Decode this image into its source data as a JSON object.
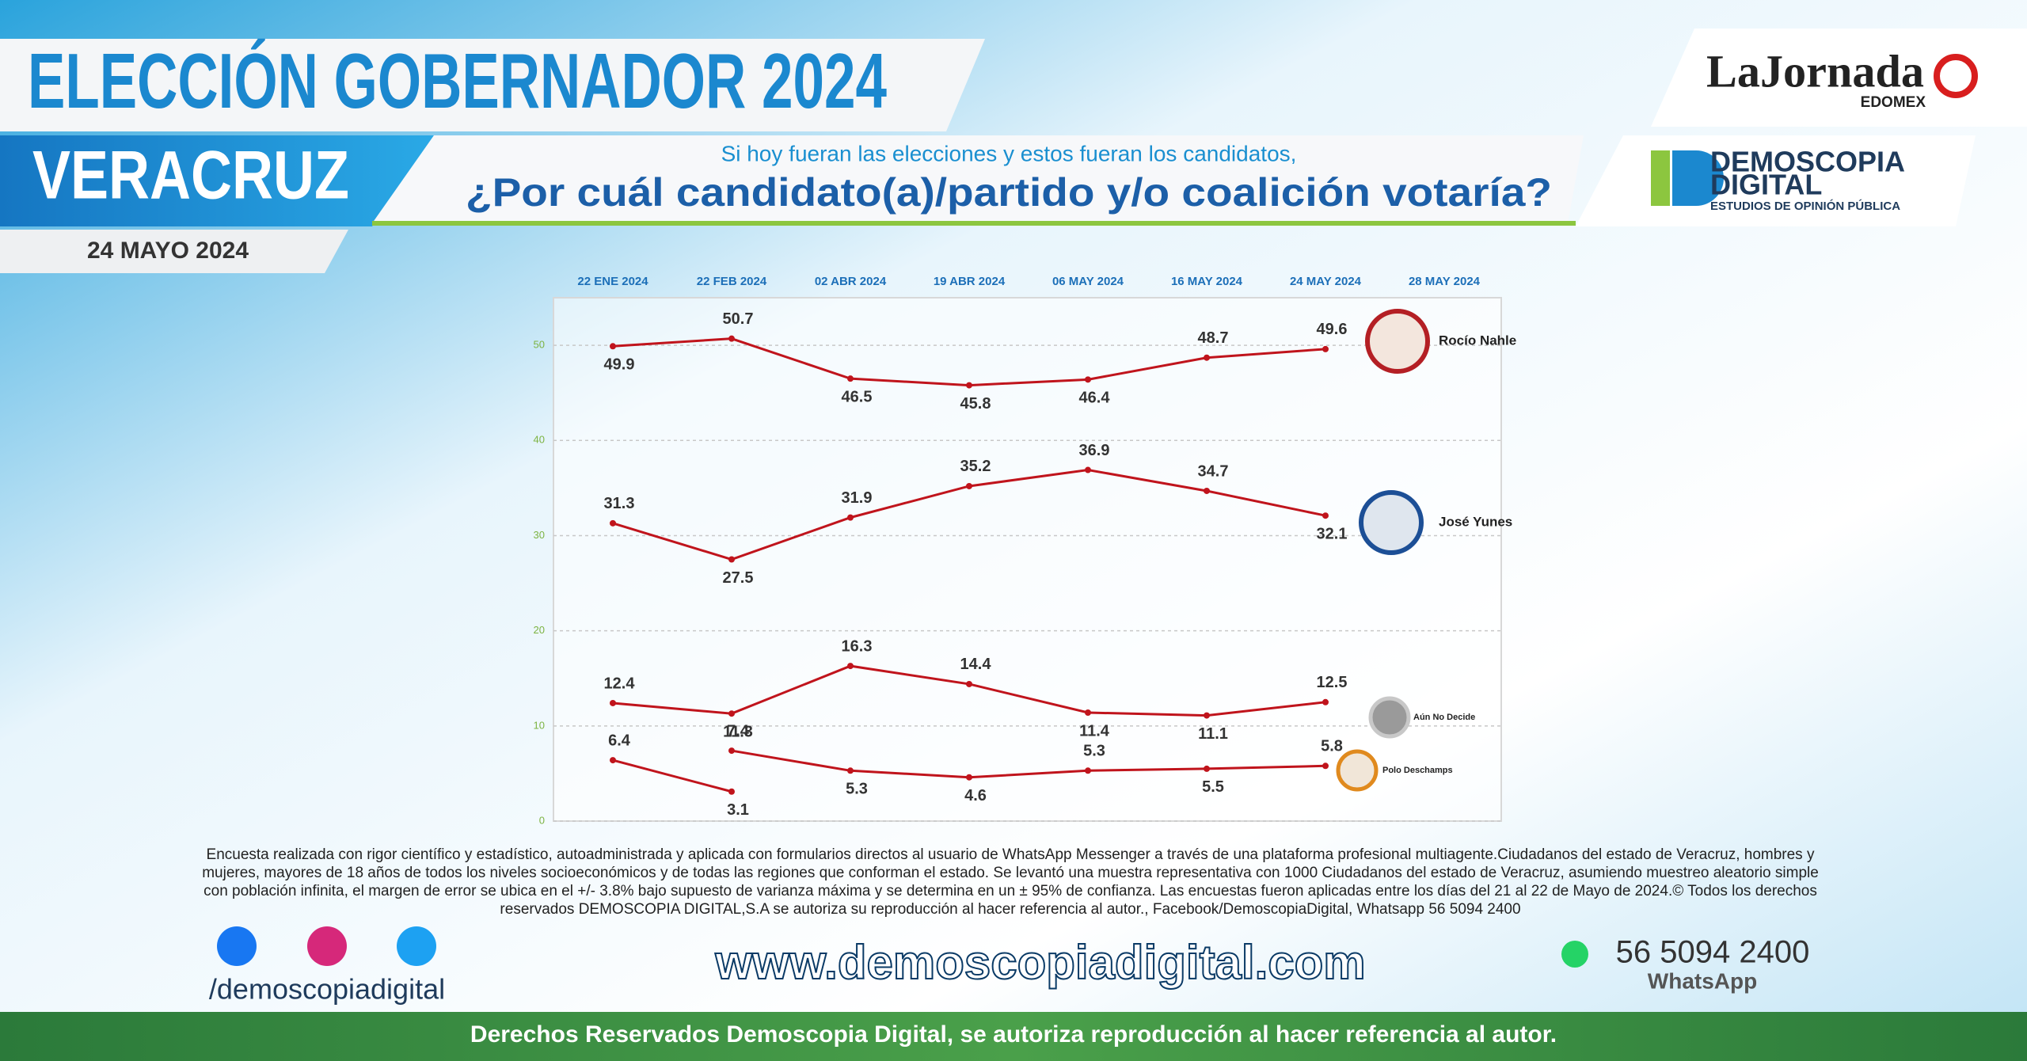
{
  "header": {
    "title": "ELECCIÓN GOBERNADOR 2024",
    "state": "VERACRUZ",
    "date": "24 MAYO 2024",
    "question_intro": "Si hoy fueran las elecciones y estos fueran los candidatos,",
    "question": "¿Por cuál candidato(a)/partido y/o coalición votaría?",
    "brand_1": "LaJornada",
    "brand_1_sub": "EDOMEX",
    "brand_2_line1": "DEMOSCOPIA",
    "brand_2_line2": "DIGITAL",
    "brand_2_sub": "ESTUDIOS DE OPINIÓN PÚBLICA"
  },
  "chart_data": {
    "type": "line",
    "categories": [
      "22 ENE 2024",
      "22 FEB 2024",
      "02 ABR 2024",
      "19 ABR 2024",
      "06 MAY 2024",
      "16 MAY 2024",
      "24 MAY 2024",
      "28 MAY 2024"
    ],
    "series": [
      {
        "name": "Rocío Nahle",
        "color": "#c0141c",
        "values": [
          49.9,
          50.7,
          46.5,
          45.8,
          46.4,
          48.7,
          49.6,
          null
        ]
      },
      {
        "name": "José Yunes",
        "color": "#c0141c",
        "values": [
          31.3,
          27.5,
          31.9,
          35.2,
          36.9,
          34.7,
          32.1,
          null
        ]
      },
      {
        "name": "Aún No Decide",
        "color": "#c0141c",
        "values": [
          12.4,
          11.3,
          16.3,
          14.4,
          11.4,
          11.1,
          12.5,
          null
        ]
      },
      {
        "name": "Polo Deschamps",
        "color": "#c0141c",
        "values": [
          null,
          7.4,
          5.3,
          4.6,
          5.3,
          5.5,
          5.8,
          null
        ]
      },
      {
        "color": "#c0141c",
        "values": [
          6.4,
          3.1,
          null,
          null,
          null,
          null,
          null,
          null
        ]
      }
    ],
    "ylim": [
      0,
      55
    ],
    "yticks": [
      0,
      10,
      20,
      30,
      40,
      50
    ],
    "grid": true
  },
  "footer": {
    "note_lines": [
      "Encuesta realizada con rigor científico y estadístico, autoadministrada y aplicada con formularios directos al usuario de WhatsApp Messenger a través de una plataforma profesional multiagente.Ciudadanos del estado de Veracruz, hombres y",
      "mujeres, mayores de 18 años de todos los niveles socioeconómicos y de todas las regiones que conforman el estado. Se levantó una muestra representativa con 1000 Ciudadanos del estado de Veracruz, asumiendo muestreo aleatorio simple",
      "con población infinita, el margen de error se ubica en el +/- 3.8% bajo supuesto de varianza máxima y se determina en un ± 95% de confianza. Las encuestas fueron aplicadas entre los días del 21 al 22 de Mayo de 2024.© Todos los derechos",
      "reservados DEMOSCOPIA DIGITAL,S.A se autoriza su reproducción al hacer referencia al autor., Facebook/DemoscopiaDigital, Whatsapp 56 5094 2400"
    ],
    "social_handle": "/demoscopiadigital",
    "website": "www.demoscopiadigital.com",
    "phone": "56 5094 2400",
    "phone_label": "WhatsApp",
    "rights": "Derechos Reservados Demoscopia Digital, se autoriza reproducción al hacer referencia al autor."
  }
}
